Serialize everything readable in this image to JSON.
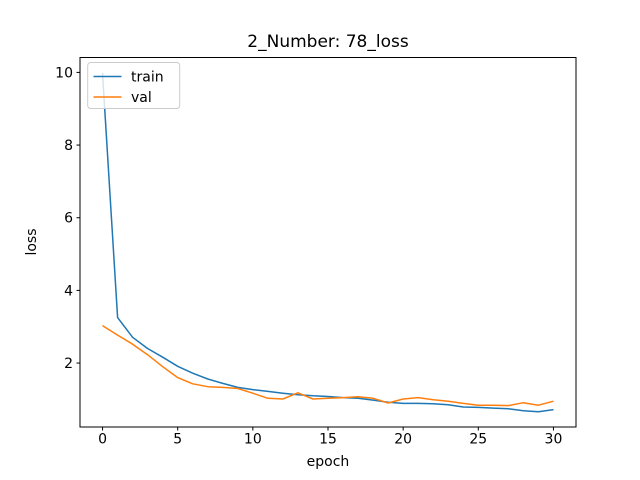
{
  "figure": {
    "background": "#ffffff",
    "spine_color": "#000000",
    "tick_color": "#000000",
    "legend_edge_color": "#cccccc",
    "legend_face_color": "#ffffff"
  },
  "chart_data": {
    "type": "line",
    "title": "2_Number: 78_loss",
    "xlabel": "epoch",
    "ylabel": "loss",
    "x": [
      0,
      1,
      2,
      3,
      4,
      5,
      6,
      7,
      8,
      9,
      10,
      11,
      12,
      13,
      14,
      15,
      16,
      17,
      18,
      19,
      20,
      21,
      22,
      23,
      24,
      25,
      26,
      27,
      28,
      29,
      30
    ],
    "series": [
      {
        "name": "train",
        "color": "#1f77b4",
        "values": [
          9.98,
          3.25,
          2.71,
          2.4,
          2.16,
          1.91,
          1.72,
          1.56,
          1.44,
          1.33,
          1.27,
          1.22,
          1.17,
          1.13,
          1.1,
          1.08,
          1.05,
          1.03,
          0.98,
          0.92,
          0.89,
          0.89,
          0.88,
          0.85,
          0.79,
          0.78,
          0.76,
          0.74,
          0.69,
          0.66,
          0.72
        ]
      },
      {
        "name": "val",
        "color": "#ff7f0e",
        "values": [
          3.03,
          2.77,
          2.52,
          2.23,
          1.9,
          1.6,
          1.43,
          1.35,
          1.33,
          1.3,
          1.17,
          1.03,
          1.01,
          1.18,
          1.01,
          1.03,
          1.05,
          1.07,
          1.03,
          0.9,
          1.01,
          1.05,
          0.99,
          0.95,
          0.89,
          0.84,
          0.84,
          0.83,
          0.91,
          0.84,
          0.95
        ]
      }
    ],
    "xlim": [
      -1.5,
      31.5
    ],
    "ylim": [
      0.24,
      10.41
    ],
    "xticks": [
      0,
      5,
      10,
      15,
      20,
      25,
      30
    ],
    "yticks": [
      2,
      4,
      6,
      8,
      10
    ],
    "grid": false,
    "legend": {
      "position": "upper left",
      "entries": [
        "train",
        "val"
      ]
    }
  }
}
